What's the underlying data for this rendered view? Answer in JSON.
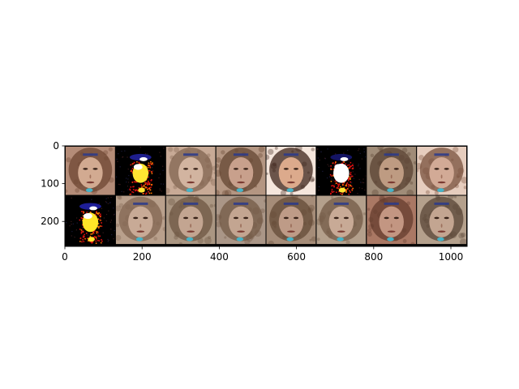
{
  "chart_data": {
    "type": "heatmap",
    "title": "",
    "xlabel": "",
    "ylabel": "",
    "xlim": [
      0,
      1042
    ],
    "ylim": [
      266,
      0
    ],
    "grid": false,
    "x_ticks": [
      {
        "value": 0,
        "label": "0"
      },
      {
        "value": 200,
        "label": "200"
      },
      {
        "value": 400,
        "label": "400"
      },
      {
        "value": 600,
        "label": "600"
      },
      {
        "value": 800,
        "label": "800"
      },
      {
        "value": 1000,
        "label": "1000"
      }
    ],
    "y_ticks": [
      {
        "value": 0,
        "label": "0"
      },
      {
        "value": 100,
        "label": "100"
      },
      {
        "value": 200,
        "label": "200"
      }
    ],
    "image_grid": {
      "rows": 2,
      "cols": 8,
      "tile_size": 128,
      "padding": 2,
      "tiles": [
        {
          "row": 0,
          "col": 0,
          "style": "face",
          "bg": "#b48c78",
          "skin": "#d2aa91",
          "hair": "#6e4632"
        },
        {
          "row": 0,
          "col": 1,
          "style": "saturated",
          "bg": "#000000",
          "skin": "#ffe632",
          "hair": "#1e1e8c"
        },
        {
          "row": 0,
          "col": 2,
          "style": "face",
          "bg": "#c8aa96",
          "skin": "#d2b4a0",
          "hair": "#826450"
        },
        {
          "row": 0,
          "col": 3,
          "style": "face",
          "bg": "#b49682",
          "skin": "#c8a08c",
          "hair": "#644632"
        },
        {
          "row": 0,
          "col": 4,
          "style": "face",
          "bg": "#f5e6dc",
          "skin": "#dcaa8c",
          "hair": "#3c2319"
        },
        {
          "row": 0,
          "col": 5,
          "style": "saturated",
          "bg": "#000000",
          "skin": "#ffffff",
          "hair": "#141464"
        },
        {
          "row": 0,
          "col": 6,
          "style": "face",
          "bg": "#a08c78",
          "skin": "#be9b82",
          "hair": "#5a4132"
        },
        {
          "row": 0,
          "col": 7,
          "style": "face",
          "bg": "#e6cdbe",
          "skin": "#d2aa96",
          "hair": "#78503c"
        },
        {
          "row": 1,
          "col": 0,
          "style": "saturated",
          "bg": "#000000",
          "skin": "#ffe628",
          "hair": "#1e1e96"
        },
        {
          "row": 1,
          "col": 1,
          "style": "face",
          "bg": "#b9a08c",
          "skin": "#c8aa96",
          "hair": "#826450"
        },
        {
          "row": 1,
          "col": 2,
          "style": "face",
          "bg": "#aa9682",
          "skin": "#c3a591",
          "hair": "#6e5541"
        },
        {
          "row": 1,
          "col": 3,
          "style": "face",
          "bg": "#aa9687",
          "skin": "#c3a591",
          "hair": "#735a46"
        },
        {
          "row": 1,
          "col": 4,
          "style": "face",
          "bg": "#a58c78",
          "skin": "#be9b87",
          "hair": "#644b37"
        },
        {
          "row": 1,
          "col": 5,
          "style": "face",
          "bg": "#b4a08c",
          "skin": "#c8aa96",
          "hair": "#735a46"
        },
        {
          "row": 1,
          "col": 6,
          "style": "face",
          "bg": "#aa7864",
          "skin": "#c39682",
          "hair": "#643c2d"
        },
        {
          "row": 1,
          "col": 7,
          "style": "face",
          "bg": "#b4a08c",
          "skin": "#c3a591",
          "hair": "#5a4637"
        }
      ]
    }
  }
}
